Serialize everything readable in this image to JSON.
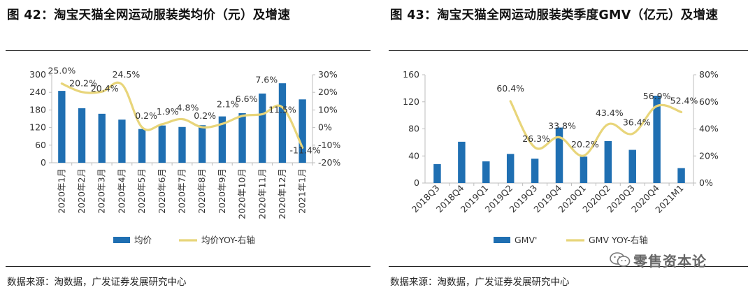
{
  "left": {
    "title": "图 42：淘宝天猫全网运动服装类均价（元）及增速",
    "source": "数据来源：淘数据，广发证券发展研究中心"
  },
  "right": {
    "title": "图 43：淘宝天猫全网运动服装类季度GMV（亿元）及增速",
    "source": "数据来源：淘数据，广发证券发展研究中心"
  },
  "watermark": "零售资本论",
  "colors": {
    "bar": "#1f6fb2",
    "line": "#e8d57a",
    "text": "#333333",
    "axis": "#bdbdbd"
  },
  "chart_data": [
    {
      "type": "bar",
      "categories": [
        "2020年1月",
        "2020年2月",
        "2020年3月",
        "2020年4月",
        "2020年5月",
        "2020年6月",
        "2020年7月",
        "2020年8月",
        "2020年9月",
        "2020年10月",
        "2020年11月",
        "2020年12月",
        "2021年1月"
      ],
      "series": [
        {
          "name": "均价",
          "type": "bar",
          "axis": "left",
          "values": [
            245,
            186,
            167,
            147,
            115,
            127,
            122,
            128,
            158,
            169,
            236,
            271,
            216
          ]
        },
        {
          "name": "均价YOY-右轴",
          "type": "line",
          "axis": "right",
          "values": [
            25.0,
            20.2,
            20.4,
            24.5,
            0.2,
            1.9,
            4.8,
            0.2,
            2.1,
            6.6,
            7.6,
            11.5,
            -11.4
          ],
          "labels": [
            "25.0%",
            "20.2%",
            "20.4%",
            "24.5%",
            "0.2%",
            "1.9%",
            "4.8%",
            "0.2%",
            "2.1%",
            "6.6%",
            "7.6%",
            "11.5%",
            "-11.4%"
          ]
        }
      ],
      "yleft": {
        "min": 0,
        "max": 300,
        "ticks": [
          "0",
          "60",
          "120",
          "180",
          "240",
          "300"
        ]
      },
      "yright": {
        "min": -20,
        "max": 30,
        "ticks": [
          "-20%",
          "-10%",
          "0%",
          "10%",
          "20%",
          "30%"
        ]
      },
      "legend": [
        "均价",
        "均价YOY-右轴"
      ],
      "legend_position": "bottom"
    },
    {
      "type": "bar",
      "categories": [
        "2018Q3",
        "2018Q4",
        "2019Q1",
        "2019Q2",
        "2019Q3",
        "2019Q4",
        "2020Q1",
        "2020Q2",
        "2020Q3",
        "2020Q4",
        "2021M1"
      ],
      "series": [
        {
          "name": "GMV",
          "type": "bar",
          "axis": "left",
          "values": [
            28,
            61,
            32,
            43,
            36,
            82,
            39,
            62,
            49,
            129,
            22
          ]
        },
        {
          "name": "GMV YOY-右轴",
          "type": "line",
          "axis": "right",
          "values": [
            null,
            null,
            null,
            60.4,
            26.3,
            33.8,
            20.2,
            43.4,
            36.4,
            56.9,
            52.4
          ],
          "labels": [
            null,
            null,
            null,
            "60.4%",
            "26.3%",
            "33.8%",
            "20.2%",
            "43.4%",
            "36.4%",
            "56.9%",
            "52.4%"
          ]
        }
      ],
      "yleft": {
        "min": 0,
        "max": 160,
        "ticks": [
          "0",
          "40",
          "80",
          "120",
          "160"
        ]
      },
      "yright": {
        "min": 0,
        "max": 80,
        "ticks": [
          "0%",
          "20%",
          "40%",
          "60%",
          "80%"
        ]
      },
      "legend": [
        "GMV'",
        "GMV YOY-右轴"
      ],
      "legend_position": "bottom"
    }
  ]
}
